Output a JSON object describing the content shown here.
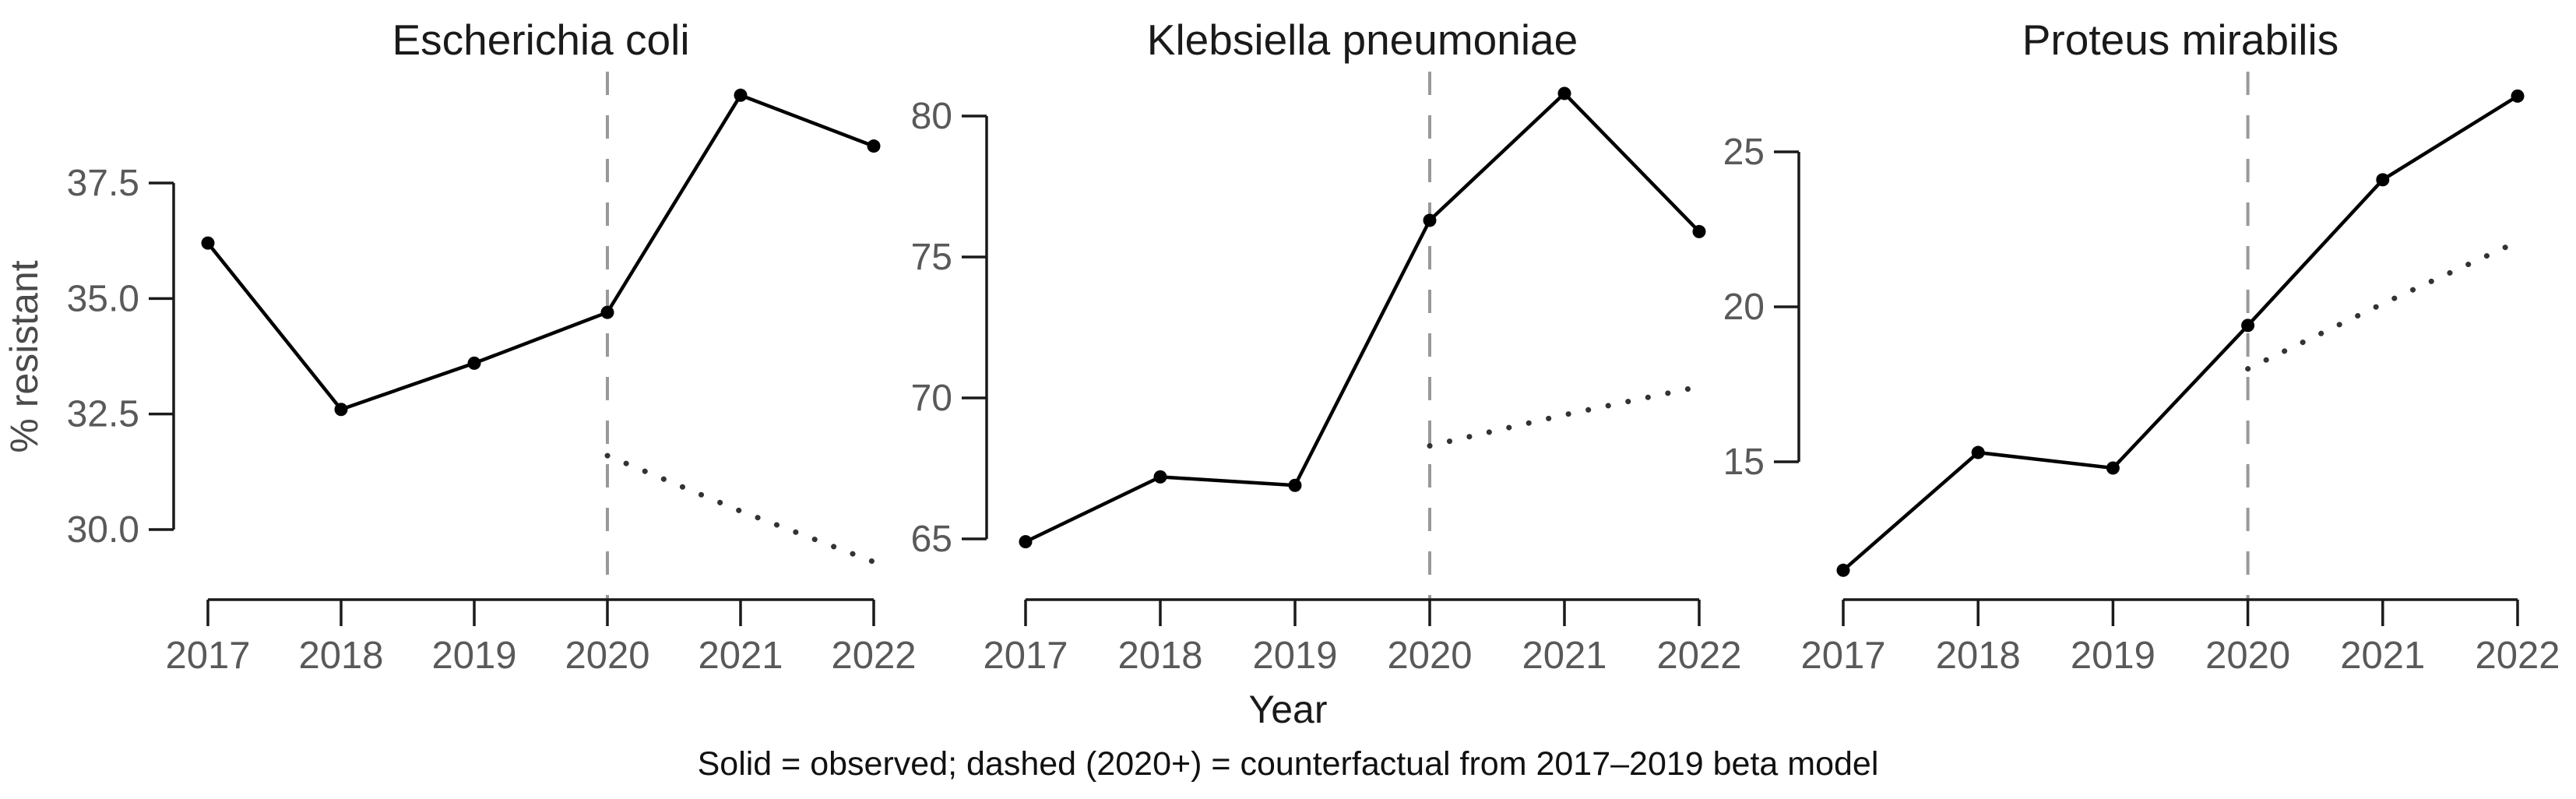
{
  "figure": {
    "xlabel": "Year",
    "ylabel": "% resistant",
    "caption": "Solid = observed; dashed (2020+) = counterfactual from 2017–2019 beta model",
    "background": "#ffffff",
    "colors": {
      "observed_line": "#000000",
      "observed_point": "#000000",
      "counterfactual_line": "#333333",
      "event_dashed_line": "#999999",
      "axis_line": "#1a1a1a",
      "tick_label": "#595959",
      "title_text": "#1a1a1a"
    }
  },
  "chart_data": [
    {
      "type": "line",
      "title": "Escherichia coli",
      "xlabel": "Year",
      "ylabel": "% resistant",
      "x": [
        2017,
        2018,
        2019,
        2020,
        2021,
        2022
      ],
      "yticks": {
        "values": [
          30.0,
          32.5,
          35.0,
          37.5
        ],
        "labels": [
          "30.0",
          "32.5",
          "35.0",
          "37.5"
        ]
      },
      "ylim": [
        30.0,
        37.5
      ],
      "event_line_x": 2020,
      "grid": "off",
      "series": [
        {
          "name": "observed",
          "style": "solid",
          "x": [
            2017,
            2018,
            2019,
            2020,
            2021,
            2022
          ],
          "values": [
            36.2,
            32.6,
            33.6,
            34.7,
            39.4,
            38.3
          ]
        },
        {
          "name": "counterfactual",
          "style": "dotted",
          "x": [
            2020,
            2021,
            2022
          ],
          "values": [
            31.6,
            30.4,
            29.3
          ]
        }
      ]
    },
    {
      "type": "line",
      "title": "Klebsiella pneumoniae",
      "xlabel": "Year",
      "ylabel": "% resistant",
      "x": [
        2017,
        2018,
        2019,
        2020,
        2021,
        2022
      ],
      "yticks": {
        "values": [
          65,
          70,
          75,
          80
        ],
        "labels": [
          "65",
          "70",
          "75",
          "80"
        ]
      },
      "ylim": [
        65,
        80
      ],
      "event_line_x": 2020,
      "grid": "off",
      "series": [
        {
          "name": "observed",
          "style": "solid",
          "x": [
            2017,
            2018,
            2019,
            2020,
            2021,
            2022
          ],
          "values": [
            64.9,
            67.2,
            66.9,
            76.3,
            80.8,
            75.9
          ]
        },
        {
          "name": "counterfactual",
          "style": "dotted",
          "x": [
            2020,
            2021,
            2022
          ],
          "values": [
            68.3,
            69.4,
            70.4
          ]
        }
      ]
    },
    {
      "type": "line",
      "title": "Proteus mirabilis",
      "xlabel": "Year",
      "ylabel": "% resistant",
      "x": [
        2017,
        2018,
        2019,
        2020,
        2021,
        2022
      ],
      "yticks": {
        "values": [
          15,
          20,
          25
        ],
        "labels": [
          "15",
          "20",
          "25"
        ]
      },
      "ylim": [
        15,
        25
      ],
      "event_line_x": 2020,
      "grid": "off",
      "series": [
        {
          "name": "observed",
          "style": "solid",
          "x": [
            2017,
            2018,
            2019,
            2020,
            2021,
            2022
          ],
          "values": [
            11.5,
            15.3,
            14.8,
            19.4,
            24.1,
            26.8
          ]
        },
        {
          "name": "counterfactual",
          "style": "dotted",
          "x": [
            2020,
            2021,
            2022
          ],
          "values": [
            18.0,
            20.1,
            22.1
          ]
        }
      ]
    }
  ]
}
